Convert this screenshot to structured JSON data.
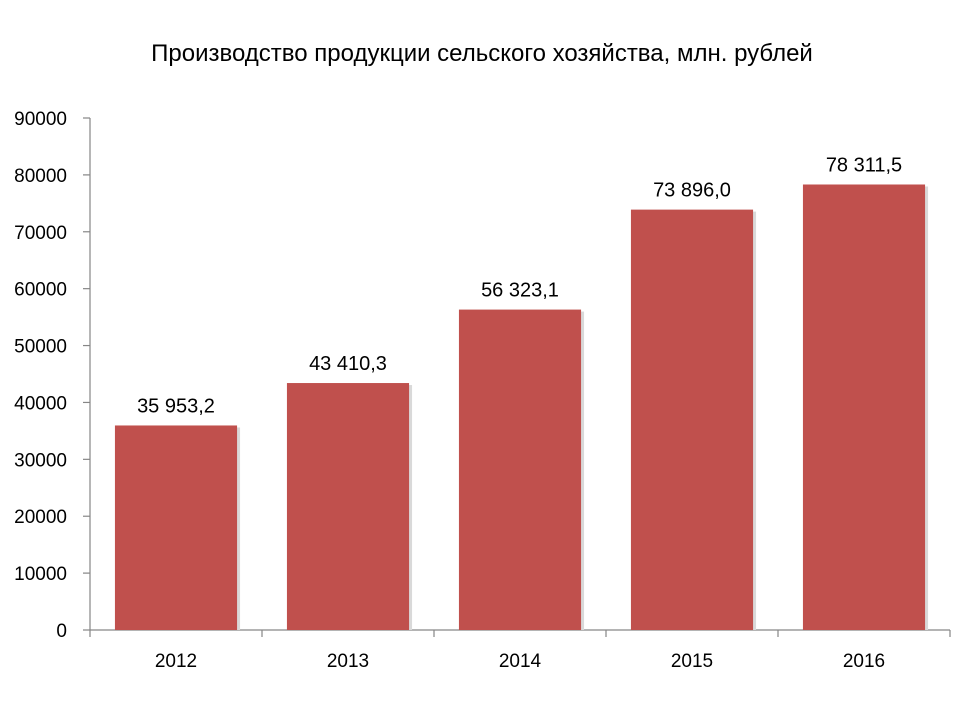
{
  "chart_data": {
    "type": "bar",
    "title": "Производство продукции сельского хозяйства, млн. рублей",
    "categories": [
      "2012",
      "2013",
      "2014",
      "2015",
      "2016"
    ],
    "values": [
      35953.2,
      43410.3,
      56323.1,
      73896.0,
      78311.5
    ],
    "data_labels": [
      "35 953,2",
      "43 410,3",
      "56 323,1",
      "73 896,0",
      "78 311,5"
    ],
    "ylim": [
      0,
      90000
    ],
    "y_ticks": [
      "0",
      "10000",
      "20000",
      "30000",
      "40000",
      "50000",
      "60000",
      "70000",
      "80000",
      "90000"
    ],
    "grid": false,
    "legend": "none",
    "bar_color": "#c0504d"
  }
}
